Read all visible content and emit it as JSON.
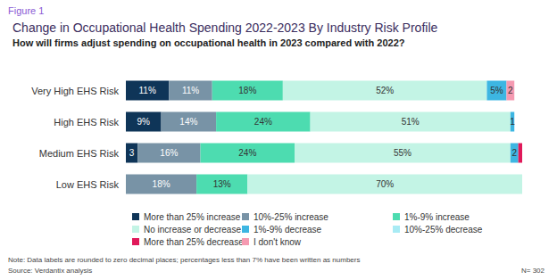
{
  "chart_data": {
    "type": "bar",
    "orientation": "horizontal",
    "stacked": true,
    "data_labels": true,
    "tick_labels": "y",
    "legend": "bottom",
    "title": "Change in Occupational Health Spending 2022-2023 By Industry Risk Profile",
    "subtitle": "How will firms adjust spending on occupational health in 2023 compared with 2022?",
    "annotations": [
      "Figure 1",
      "Note: Data labels are rounded to zero decimal places; percentages less than 7% have been written as numbers",
      "Source: Verdantix analysis",
      "N= 302"
    ],
    "categories": [
      "Very High EHS Risk",
      "High EHS Risk",
      "Medium EHS Risk",
      "Low EHS Risk"
    ],
    "xlim": [
      0,
      101
    ],
    "series": [
      {
        "name": "More than 25% increase",
        "color": "#0f3558",
        "values": [
          11,
          9,
          3,
          null
        ],
        "value_labels": [
          "11%",
          "9%",
          "3",
          null
        ]
      },
      {
        "name": "10%-25% increase",
        "color": "#7893a6",
        "values": [
          11,
          14,
          16,
          18
        ],
        "value_labels": [
          "11%",
          "14%",
          "16%",
          "18%"
        ]
      },
      {
        "name": "1%-9% increase",
        "color": "#4ddcb0",
        "values": [
          18,
          24,
          24,
          13
        ],
        "value_labels": [
          "18%",
          "24%",
          "24%",
          "13%"
        ]
      },
      {
        "name": "No increase or decrease",
        "color": "#c3f4e5",
        "values": [
          52,
          51,
          55,
          70
        ],
        "value_labels": [
          "52%",
          "51%",
          "55%",
          "70%"
        ]
      },
      {
        "name": "1%-9% decrease",
        "color": "#3db6e2",
        "values": [
          5,
          1,
          2,
          null
        ],
        "value_labels": [
          "5%",
          "1",
          "2",
          null
        ]
      },
      {
        "name": "10%-25% decrease",
        "color": "#a8ebf4",
        "values": [
          null,
          null,
          null,
          null
        ],
        "value_labels": [
          null,
          null,
          null,
          null
        ]
      },
      {
        "name": "More than 25% decrease",
        "color": "#e0195a",
        "values": [
          null,
          null,
          1,
          null
        ],
        "value_labels": [
          null,
          null,
          null,
          null
        ]
      },
      {
        "name": "I don't know",
        "color": "#f59ab1",
        "values": [
          2,
          null,
          null,
          null
        ],
        "value_labels": [
          "2",
          null,
          null,
          null
        ]
      }
    ]
  }
}
